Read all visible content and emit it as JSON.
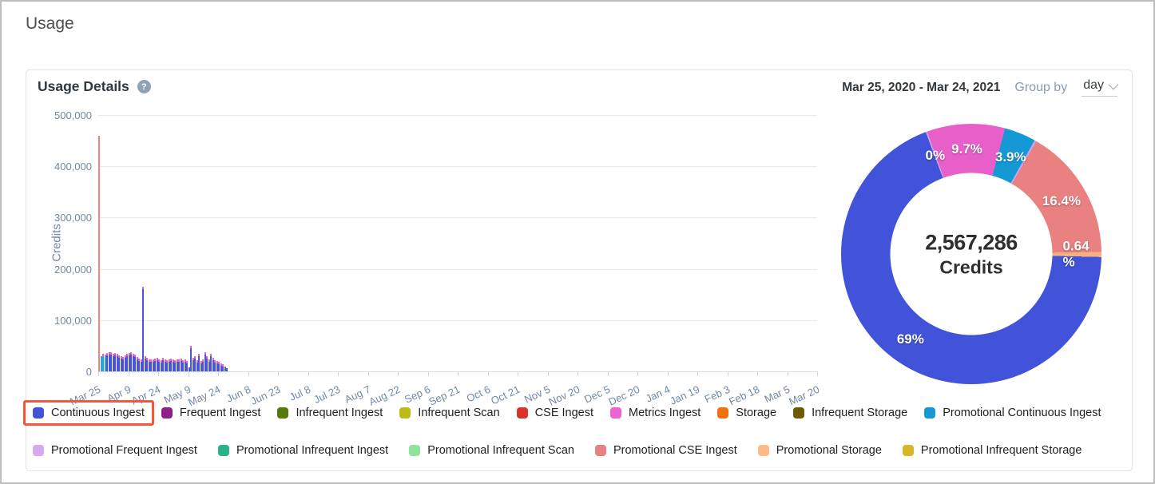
{
  "page": {
    "title": "Usage"
  },
  "panel": {
    "title": "Usage Details",
    "help_icon": "?",
    "date_range": "Mar 25, 2020 - Mar 24, 2021",
    "group_by_label": "Group by",
    "group_by_value": "day"
  },
  "chart_data": [
    {
      "type": "bar",
      "title": "",
      "xlabel": "",
      "ylabel": "Credits",
      "ylim": [
        0,
        500000
      ],
      "grid": true,
      "yticks": [
        "0",
        "100,000",
        "200,000",
        "300,000",
        "400,000",
        "500,000"
      ],
      "xticks": [
        "Mar 25",
        "Apr 9",
        "Apr 24",
        "May 9",
        "May 24",
        "Jun 8",
        "Jun 23",
        "Jul 8",
        "Jul 23",
        "Aug 7",
        "Aug 22",
        "Sep 6",
        "Sep 21",
        "Oct 6",
        "Oct 21",
        "Nov 5",
        "Nov 20",
        "Dec 5",
        "Dec 20",
        "Jan 4",
        "Jan 19",
        "Feb 3",
        "Feb 18",
        "Mar 5",
        "Mar 20"
      ],
      "days_per_tick": 15,
      "bar_colors": {
        "salmon": "#ee8380",
        "cyan": "#27a9d8",
        "blue": "#4a55d6",
        "tip": "#e85fc4"
      },
      "bars_note": "values are daily Credits, [value, colorKey, hasPinkTip]; usage stops after late May",
      "bars": [
        [
          460000,
          "salmon",
          0
        ],
        [
          30000,
          "cyan",
          0
        ],
        [
          34000,
          "cyan",
          1
        ],
        [
          32000,
          "cyan",
          1
        ],
        [
          36000,
          "blue",
          1
        ],
        [
          38000,
          "blue",
          1
        ],
        [
          37000,
          "blue",
          1
        ],
        [
          35000,
          "blue",
          1
        ],
        [
          36000,
          "blue",
          1
        ],
        [
          34000,
          "blue",
          1
        ],
        [
          31000,
          "blue",
          1
        ],
        [
          29000,
          "blue",
          1
        ],
        [
          28000,
          "blue",
          1
        ],
        [
          31000,
          "blue",
          1
        ],
        [
          34000,
          "blue",
          1
        ],
        [
          36000,
          "blue",
          1
        ],
        [
          37000,
          "blue",
          1
        ],
        [
          35000,
          "blue",
          1
        ],
        [
          32000,
          "blue",
          1
        ],
        [
          28000,
          "blue",
          1
        ],
        [
          25000,
          "blue",
          1
        ],
        [
          23000,
          "blue",
          1
        ],
        [
          165000,
          "blue",
          1
        ],
        [
          30000,
          "blue",
          1
        ],
        [
          26000,
          "blue",
          1
        ],
        [
          24000,
          "blue",
          1
        ],
        [
          23000,
          "blue",
          1
        ],
        [
          24000,
          "blue",
          1
        ],
        [
          25000,
          "blue",
          1
        ],
        [
          26000,
          "blue",
          1
        ],
        [
          24000,
          "blue",
          1
        ],
        [
          22000,
          "blue",
          1
        ],
        [
          26000,
          "blue",
          1
        ],
        [
          23000,
          "blue",
          1
        ],
        [
          22000,
          "blue",
          1
        ],
        [
          24000,
          "blue",
          1
        ],
        [
          25000,
          "blue",
          1
        ],
        [
          23000,
          "blue",
          1
        ],
        [
          22000,
          "blue",
          1
        ],
        [
          24000,
          "blue",
          1
        ],
        [
          23000,
          "blue",
          1
        ],
        [
          25000,
          "blue",
          1
        ],
        [
          22000,
          "blue",
          1
        ],
        [
          23000,
          "blue",
          1
        ],
        [
          21000,
          "blue",
          1
        ],
        [
          8000,
          "blue",
          0
        ],
        [
          50000,
          "blue",
          1
        ],
        [
          26000,
          "blue",
          1
        ],
        [
          30000,
          "blue",
          1
        ],
        [
          22000,
          "blue",
          1
        ],
        [
          34000,
          "blue",
          1
        ],
        [
          20000,
          "blue",
          1
        ],
        [
          24000,
          "blue",
          1
        ],
        [
          38000,
          "blue",
          1
        ],
        [
          30000,
          "blue",
          1
        ],
        [
          24000,
          "blue",
          1
        ],
        [
          34000,
          "blue",
          1
        ],
        [
          26000,
          "blue",
          1
        ],
        [
          22000,
          "blue",
          1
        ],
        [
          20000,
          "blue",
          1
        ],
        [
          18000,
          "blue",
          1
        ],
        [
          16000,
          "blue",
          1
        ],
        [
          14000,
          "blue",
          1
        ],
        [
          10000,
          "blue",
          0
        ],
        [
          6000,
          "blue",
          0
        ]
      ]
    },
    {
      "type": "donut",
      "center_value": "2,567,286",
      "center_label": "Credits",
      "start_angle": -20.5,
      "label_radius": 131,
      "slices": [
        {
          "label": "0%",
          "pct": 0.18,
          "color": "#c9a3ee"
        },
        {
          "label": "9.7%",
          "pct": 9.7,
          "color": "#e95fc9"
        },
        {
          "label": "3.9%",
          "pct": 3.9,
          "color": "#1499d4"
        },
        {
          "label": "",
          "pct": 0.25,
          "color": "#c9a3ee"
        },
        {
          "label": "16.4%",
          "pct": 16.4,
          "color": "#ea8181"
        },
        {
          "label": "0.64\n%",
          "pct": 0.64,
          "color": "#f8b07e"
        },
        {
          "label": "69%",
          "pct": 69.0,
          "color": "#4154d9"
        }
      ]
    }
  ],
  "legend": {
    "highlight_color": "#f4573c",
    "rows": [
      [
        {
          "label": "Continuous Ingest",
          "color": "#4154d9",
          "highlighted": true
        },
        {
          "label": "Frequent Ingest",
          "color": "#8e2185"
        },
        {
          "label": "Infrequent Ingest",
          "color": "#567a0a"
        },
        {
          "label": "Infrequent Scan",
          "color": "#bcbc16"
        },
        {
          "label": "CSE Ingest",
          "color": "#d93228"
        },
        {
          "label": "Metrics Ingest",
          "color": "#ee63d3"
        },
        {
          "label": "Storage",
          "color": "#ef720e"
        },
        {
          "label": "Infrequent Storage",
          "color": "#6d5a02"
        },
        {
          "label": "Promotional Continuous Ingest",
          "color": "#1499d4"
        }
      ],
      [
        {
          "label": "Promotional Frequent Ingest",
          "color": "#d8a8f0"
        },
        {
          "label": "Promotional Infrequent Ingest",
          "color": "#29b189"
        },
        {
          "label": "Promotional Infrequent Scan",
          "color": "#8fe39d"
        },
        {
          "label": "Promotional CSE Ingest",
          "color": "#ea8181"
        },
        {
          "label": "Promotional Storage",
          "color": "#ffbb86"
        },
        {
          "label": "Promotional Infrequent Storage",
          "color": "#d8b628"
        }
      ]
    ]
  }
}
